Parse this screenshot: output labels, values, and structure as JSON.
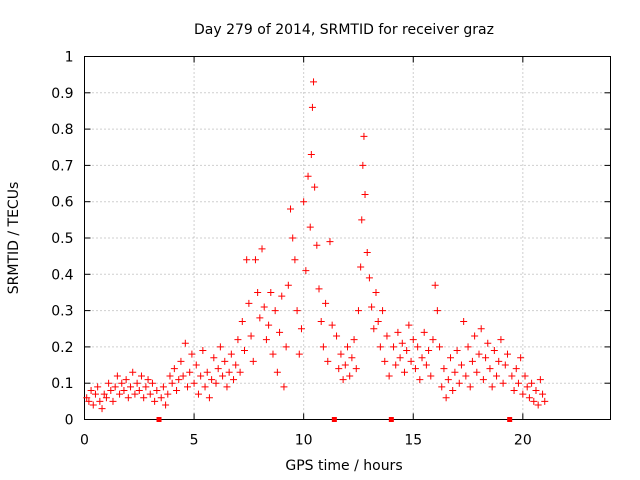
{
  "chart_data": {
    "type": "scatter",
    "title": "Day 279 of 2014, SRMTID for receiver graz",
    "xlabel": "GPS time / hours",
    "ylabel": "SRMTID / TECUs",
    "xlim": [
      0,
      24
    ],
    "ylim": [
      0,
      1
    ],
    "xticks": [
      0,
      5,
      10,
      15,
      20
    ],
    "yticks": [
      0,
      0.1,
      0.2,
      0.3,
      0.4,
      0.5,
      0.6,
      0.7,
      0.8,
      0.9,
      1
    ],
    "ytick_labels": [
      "0",
      "0.1",
      "0.2",
      "0.3",
      "0.4",
      "0.5",
      "0.6",
      "0.7",
      "0.8",
      "0.9",
      "1"
    ],
    "grid": true,
    "marker": "+",
    "color": "#ff0000",
    "data_gaps_x": [
      3.4,
      11.4,
      14.0,
      19.4
    ],
    "series": [
      {
        "name": "SRMTID",
        "points": [
          [
            0.1,
            0.06
          ],
          [
            0.2,
            0.05
          ],
          [
            0.3,
            0.08
          ],
          [
            0.4,
            0.04
          ],
          [
            0.5,
            0.07
          ],
          [
            0.6,
            0.09
          ],
          [
            0.7,
            0.05
          ],
          [
            0.8,
            0.03
          ],
          [
            0.9,
            0.07
          ],
          [
            1.0,
            0.06
          ],
          [
            1.1,
            0.1
          ],
          [
            1.2,
            0.08
          ],
          [
            1.3,
            0.05
          ],
          [
            1.4,
            0.09
          ],
          [
            1.5,
            0.12
          ],
          [
            1.6,
            0.07
          ],
          [
            1.7,
            0.1
          ],
          [
            1.8,
            0.08
          ],
          [
            1.9,
            0.11
          ],
          [
            2.0,
            0.06
          ],
          [
            2.1,
            0.09
          ],
          [
            2.2,
            0.13
          ],
          [
            2.3,
            0.07
          ],
          [
            2.4,
            0.1
          ],
          [
            2.5,
            0.08
          ],
          [
            2.6,
            0.12
          ],
          [
            2.7,
            0.06
          ],
          [
            2.8,
            0.09
          ],
          [
            2.9,
            0.11
          ],
          [
            3.0,
            0.07
          ],
          [
            3.1,
            0.1
          ],
          [
            3.2,
            0.05
          ],
          [
            3.3,
            0.08
          ],
          [
            3.5,
            0.06
          ],
          [
            3.6,
            0.09
          ],
          [
            3.7,
            0.04
          ],
          [
            3.8,
            0.07
          ],
          [
            3.9,
            0.12
          ],
          [
            4.0,
            0.1
          ],
          [
            4.1,
            0.14
          ],
          [
            4.2,
            0.08
          ],
          [
            4.3,
            0.11
          ],
          [
            4.4,
            0.16
          ],
          [
            4.5,
            0.12
          ],
          [
            4.6,
            0.21
          ],
          [
            4.7,
            0.09
          ],
          [
            4.8,
            0.13
          ],
          [
            4.9,
            0.18
          ],
          [
            5.0,
            0.1
          ],
          [
            5.1,
            0.15
          ],
          [
            5.2,
            0.07
          ],
          [
            5.3,
            0.12
          ],
          [
            5.4,
            0.19
          ],
          [
            5.5,
            0.09
          ],
          [
            5.6,
            0.13
          ],
          [
            5.7,
            0.06
          ],
          [
            5.8,
            0.11
          ],
          [
            5.9,
            0.17
          ],
          [
            6.0,
            0.1
          ],
          [
            6.1,
            0.14
          ],
          [
            6.2,
            0.2
          ],
          [
            6.3,
            0.12
          ],
          [
            6.4,
            0.16
          ],
          [
            6.5,
            0.09
          ],
          [
            6.6,
            0.13
          ],
          [
            6.7,
            0.18
          ],
          [
            6.8,
            0.11
          ],
          [
            6.9,
            0.15
          ],
          [
            7.0,
            0.22
          ],
          [
            7.1,
            0.13
          ],
          [
            7.2,
            0.27
          ],
          [
            7.3,
            0.19
          ],
          [
            7.4,
            0.44
          ],
          [
            7.5,
            0.32
          ],
          [
            7.6,
            0.23
          ],
          [
            7.7,
            0.16
          ],
          [
            7.8,
            0.44
          ],
          [
            7.9,
            0.35
          ],
          [
            8.0,
            0.28
          ],
          [
            8.1,
            0.47
          ],
          [
            8.2,
            0.31
          ],
          [
            8.3,
            0.22
          ],
          [
            8.4,
            0.26
          ],
          [
            8.5,
            0.35
          ],
          [
            8.6,
            0.18
          ],
          [
            8.7,
            0.3
          ],
          [
            8.8,
            0.13
          ],
          [
            8.9,
            0.24
          ],
          [
            9.0,
            0.34
          ],
          [
            9.1,
            0.09
          ],
          [
            9.2,
            0.2
          ],
          [
            9.3,
            0.37
          ],
          [
            9.4,
            0.58
          ],
          [
            9.5,
            0.5
          ],
          [
            9.6,
            0.44
          ],
          [
            9.7,
            0.3
          ],
          [
            9.8,
            0.18
          ],
          [
            9.9,
            0.25
          ],
          [
            10.0,
            0.6
          ],
          [
            10.1,
            0.41
          ],
          [
            10.2,
            0.67
          ],
          [
            10.3,
            0.53
          ],
          [
            10.35,
            0.73
          ],
          [
            10.4,
            0.86
          ],
          [
            10.45,
            0.93
          ],
          [
            10.5,
            0.64
          ],
          [
            10.6,
            0.48
          ],
          [
            10.7,
            0.36
          ],
          [
            10.8,
            0.27
          ],
          [
            10.9,
            0.2
          ],
          [
            11.0,
            0.32
          ],
          [
            11.1,
            0.16
          ],
          [
            11.2,
            0.49
          ],
          [
            11.3,
            0.26
          ],
          [
            11.5,
            0.23
          ],
          [
            11.6,
            0.14
          ],
          [
            11.7,
            0.18
          ],
          [
            11.8,
            0.11
          ],
          [
            11.9,
            0.15
          ],
          [
            12.0,
            0.2
          ],
          [
            12.1,
            0.12
          ],
          [
            12.2,
            0.17
          ],
          [
            12.3,
            0.22
          ],
          [
            12.4,
            0.14
          ],
          [
            12.5,
            0.3
          ],
          [
            12.6,
            0.42
          ],
          [
            12.65,
            0.55
          ],
          [
            12.7,
            0.7
          ],
          [
            12.75,
            0.78
          ],
          [
            12.8,
            0.62
          ],
          [
            12.9,
            0.46
          ],
          [
            13.0,
            0.39
          ],
          [
            13.1,
            0.31
          ],
          [
            13.2,
            0.25
          ],
          [
            13.3,
            0.35
          ],
          [
            13.4,
            0.27
          ],
          [
            13.5,
            0.2
          ],
          [
            13.6,
            0.3
          ],
          [
            13.7,
            0.16
          ],
          [
            13.8,
            0.23
          ],
          [
            13.9,
            0.12
          ],
          [
            14.1,
            0.2
          ],
          [
            14.2,
            0.15
          ],
          [
            14.3,
            0.24
          ],
          [
            14.4,
            0.17
          ],
          [
            14.5,
            0.21
          ],
          [
            14.6,
            0.13
          ],
          [
            14.7,
            0.19
          ],
          [
            14.8,
            0.26
          ],
          [
            14.9,
            0.16
          ],
          [
            15.0,
            0.22
          ],
          [
            15.1,
            0.14
          ],
          [
            15.2,
            0.2
          ],
          [
            15.3,
            0.11
          ],
          [
            15.4,
            0.17
          ],
          [
            15.5,
            0.24
          ],
          [
            15.6,
            0.15
          ],
          [
            15.7,
            0.19
          ],
          [
            15.8,
            0.12
          ],
          [
            15.9,
            0.22
          ],
          [
            16.0,
            0.37
          ],
          [
            16.1,
            0.3
          ],
          [
            16.2,
            0.2
          ],
          [
            16.3,
            0.09
          ],
          [
            16.4,
            0.14
          ],
          [
            16.5,
            0.06
          ],
          [
            16.6,
            0.11
          ],
          [
            16.7,
            0.17
          ],
          [
            16.8,
            0.08
          ],
          [
            16.9,
            0.13
          ],
          [
            17.0,
            0.19
          ],
          [
            17.1,
            0.1
          ],
          [
            17.2,
            0.15
          ],
          [
            17.3,
            0.27
          ],
          [
            17.4,
            0.12
          ],
          [
            17.5,
            0.2
          ],
          [
            17.6,
            0.09
          ],
          [
            17.7,
            0.16
          ],
          [
            17.8,
            0.23
          ],
          [
            17.9,
            0.13
          ],
          [
            18.0,
            0.18
          ],
          [
            18.1,
            0.25
          ],
          [
            18.2,
            0.11
          ],
          [
            18.3,
            0.17
          ],
          [
            18.4,
            0.21
          ],
          [
            18.5,
            0.14
          ],
          [
            18.6,
            0.09
          ],
          [
            18.7,
            0.19
          ],
          [
            18.8,
            0.12
          ],
          [
            18.9,
            0.16
          ],
          [
            19.0,
            0.22
          ],
          [
            19.1,
            0.1
          ],
          [
            19.2,
            0.15
          ],
          [
            19.3,
            0.18
          ],
          [
            19.5,
            0.12
          ],
          [
            19.6,
            0.08
          ],
          [
            19.7,
            0.14
          ],
          [
            19.8,
            0.1
          ],
          [
            19.9,
            0.17
          ],
          [
            20.0,
            0.07
          ],
          [
            20.1,
            0.12
          ],
          [
            20.2,
            0.09
          ],
          [
            20.3,
            0.06
          ],
          [
            20.4,
            0.1
          ],
          [
            20.5,
            0.05
          ],
          [
            20.6,
            0.08
          ],
          [
            20.7,
            0.04
          ],
          [
            20.8,
            0.11
          ],
          [
            20.9,
            0.07
          ],
          [
            21.0,
            0.05
          ]
        ]
      }
    ]
  }
}
